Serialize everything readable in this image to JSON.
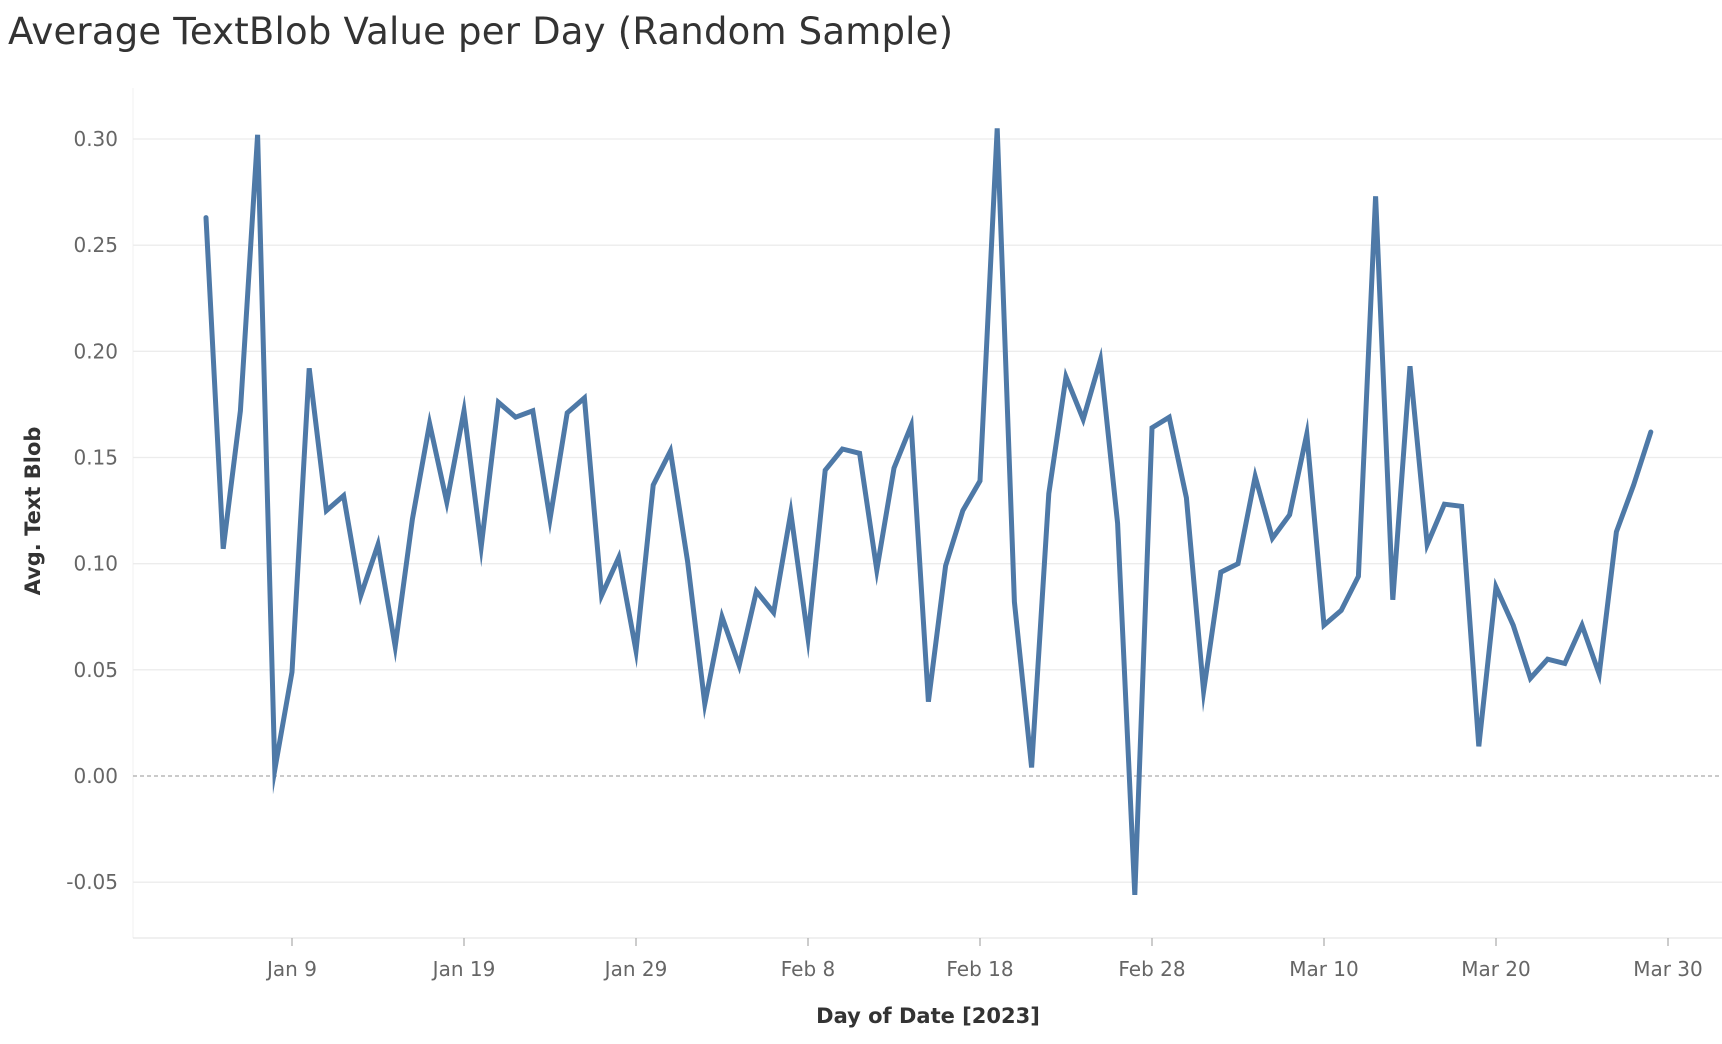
{
  "chart_data": {
    "type": "line",
    "title": "Average TextBlob Value per Day (Random Sample)",
    "xlabel": "Day of Date [2023]",
    "ylabel": "Avg. Text Blob",
    "ylim": [
      -0.08,
      0.32
    ],
    "y_ticks": [
      -0.05,
      0.0,
      0.05,
      0.1,
      0.15,
      0.2,
      0.25,
      0.3
    ],
    "y_tick_labels": [
      "-0.05",
      "0.00",
      "0.05",
      "0.10",
      "0.15",
      "0.20",
      "0.25",
      "0.30"
    ],
    "x_range": [
      "2023-01-01",
      "2023-04-02"
    ],
    "x_ticks": [
      "2023-01-09",
      "2023-01-19",
      "2023-01-29",
      "2023-02-08",
      "2023-02-18",
      "2023-02-28",
      "2023-03-10",
      "2023-03-20",
      "2023-03-30"
    ],
    "x_tick_labels": [
      "Jan 9",
      "Jan 19",
      "Jan 29",
      "Feb 8",
      "Feb 18",
      "Feb 28",
      "Mar 10",
      "Mar 20",
      "Mar 30"
    ],
    "grid": true,
    "zero_line": true,
    "line_color": "#4e79a7",
    "series": [
      {
        "x": [
          "2023-01-04",
          "2023-01-05",
          "2023-01-06",
          "2023-01-07",
          "2023-01-08",
          "2023-01-09",
          "2023-01-10",
          "2023-01-11",
          "2023-01-12",
          "2023-01-13",
          "2023-01-14",
          "2023-01-15",
          "2023-01-16",
          "2023-01-17",
          "2023-01-18",
          "2023-01-19",
          "2023-01-20",
          "2023-01-21",
          "2023-01-22",
          "2023-01-23",
          "2023-01-24",
          "2023-01-25",
          "2023-01-26",
          "2023-01-27",
          "2023-01-28",
          "2023-01-29",
          "2023-01-30",
          "2023-01-31",
          "2023-02-01",
          "2023-02-02",
          "2023-02-03",
          "2023-02-04",
          "2023-02-05",
          "2023-02-06",
          "2023-02-07",
          "2023-02-08",
          "2023-02-09",
          "2023-02-10",
          "2023-02-11",
          "2023-02-12",
          "2023-02-13",
          "2023-02-14",
          "2023-02-15",
          "2023-02-16",
          "2023-02-17",
          "2023-02-18",
          "2023-02-19",
          "2023-02-20",
          "2023-02-21",
          "2023-02-22",
          "2023-02-23",
          "2023-02-24",
          "2023-02-25",
          "2023-02-26",
          "2023-02-27",
          "2023-02-28",
          "2023-03-01",
          "2023-03-02",
          "2023-03-03",
          "2023-03-04",
          "2023-03-05",
          "2023-03-06",
          "2023-03-07",
          "2023-03-08",
          "2023-03-09",
          "2023-03-10",
          "2023-03-11",
          "2023-03-12",
          "2023-03-13",
          "2023-03-14",
          "2023-03-15",
          "2023-03-16",
          "2023-03-17",
          "2023-03-18",
          "2023-03-19",
          "2023-03-20",
          "2023-03-21",
          "2023-03-22",
          "2023-03-23",
          "2023-03-24",
          "2023-03-25",
          "2023-03-26",
          "2023-03-27",
          "2023-03-28",
          "2023-03-29"
        ],
        "values": [
          0.263,
          0.107,
          0.172,
          0.302,
          0.003,
          0.049,
          0.192,
          0.125,
          0.132,
          0.085,
          0.109,
          0.061,
          0.121,
          0.166,
          0.129,
          0.172,
          0.108,
          0.176,
          0.169,
          0.172,
          0.121,
          0.171,
          0.178,
          0.085,
          0.103,
          0.059,
          0.137,
          0.153,
          0.101,
          0.034,
          0.075,
          0.052,
          0.087,
          0.077,
          0.124,
          0.065,
          0.144,
          0.154,
          0.152,
          0.097,
          0.145,
          0.165,
          0.035,
          0.099,
          0.125,
          0.139,
          0.305,
          0.082,
          0.004,
          0.133,
          0.188,
          0.168,
          0.196,
          0.119,
          -0.056,
          0.164,
          0.169,
          0.131,
          0.04,
          0.096,
          0.1,
          0.141,
          0.112,
          0.123,
          0.161,
          0.071,
          0.078,
          0.094,
          0.273,
          0.083,
          0.193,
          0.109,
          0.128,
          0.127,
          0.014,
          0.089,
          0.071,
          0.046,
          0.055,
          0.053,
          0.071,
          0.048,
          0.115,
          0.137,
          0.162
        ]
      }
    ]
  }
}
